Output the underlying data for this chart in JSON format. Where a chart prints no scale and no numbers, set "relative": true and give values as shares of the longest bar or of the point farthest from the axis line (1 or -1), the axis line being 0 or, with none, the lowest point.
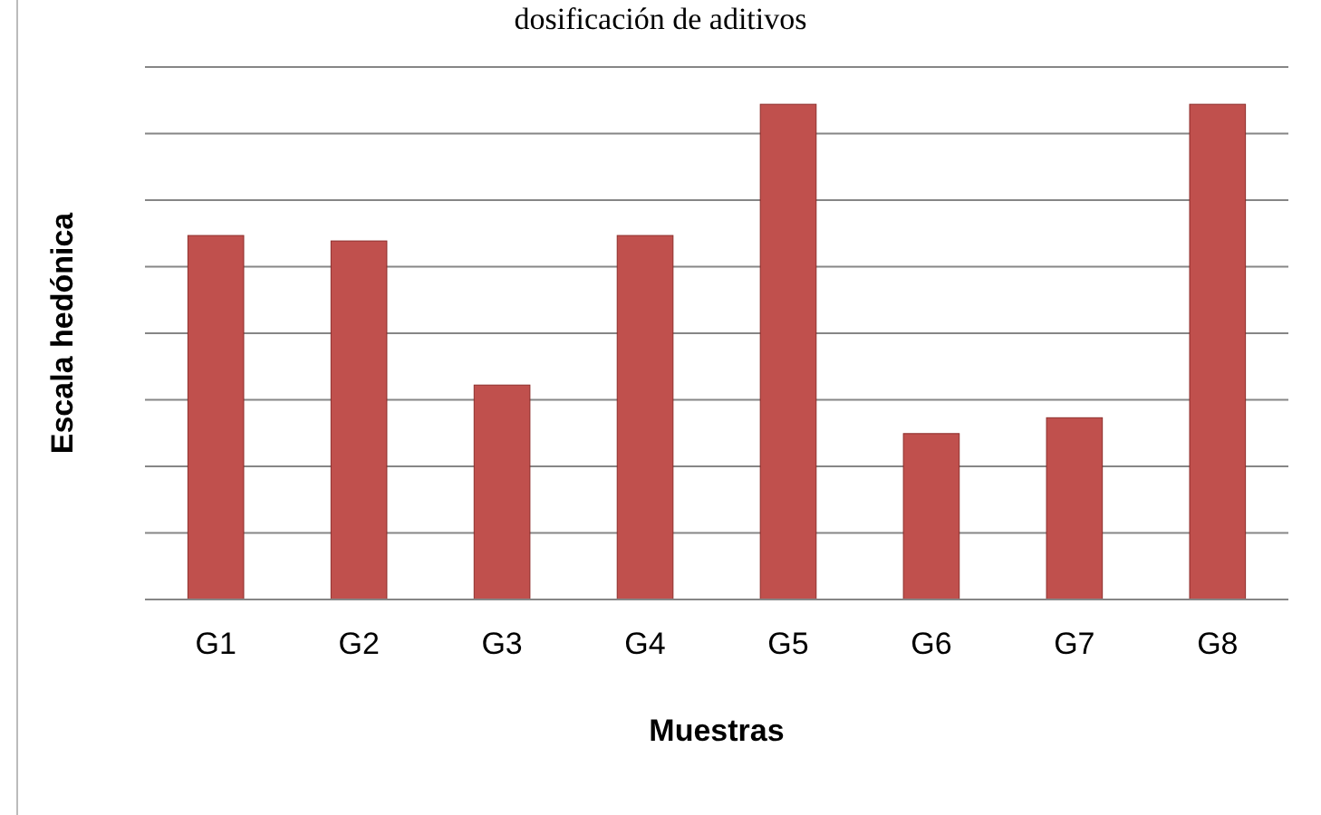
{
  "chart_data": {
    "type": "bar",
    "title": "dosificación de aditivos",
    "xlabel": "Muestras",
    "ylabel": "Escala hedónica",
    "categories": [
      "G1",
      "G2",
      "G3",
      "G4",
      "G5",
      "G6",
      "G7",
      "G8"
    ],
    "values": [
      0.735,
      0.724,
      0.433,
      0.735,
      1,
      0.335,
      0.367,
      1
    ],
    "color": "#c0504d",
    "relative": true,
    "grid": "y"
  }
}
